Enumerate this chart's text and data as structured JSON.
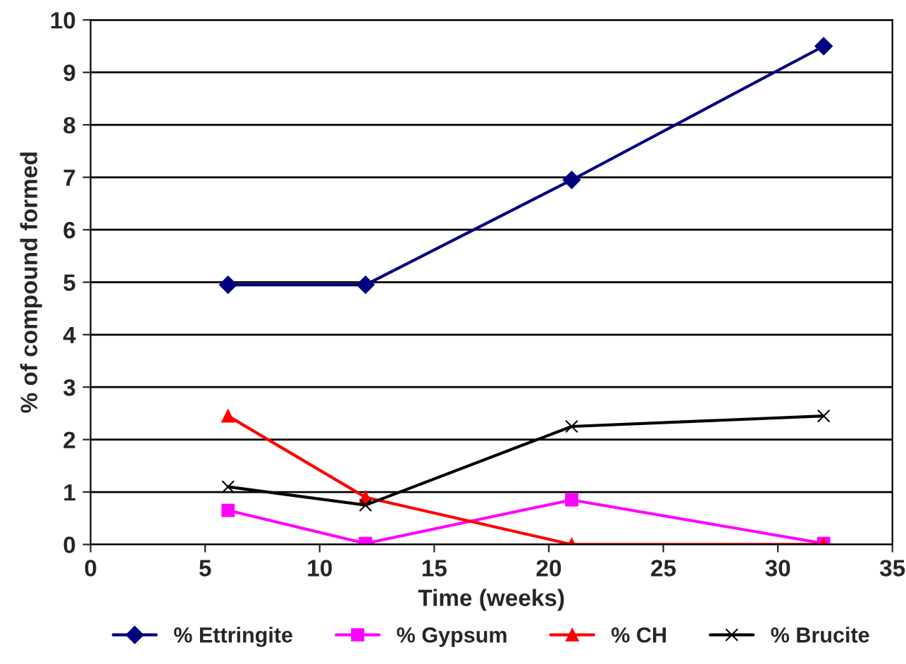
{
  "chart_data": {
    "type": "line",
    "xlabel": "Time (weeks)",
    "ylabel": "% of compound formed",
    "x": [
      6,
      12,
      21,
      32
    ],
    "series": [
      {
        "name": "% Ettringite",
        "color": "#000080",
        "marker": "diamond",
        "values": [
          4.95,
          4.95,
          6.95,
          9.5
        ]
      },
      {
        "name": "% Gypsum",
        "color": "#ff00ff",
        "marker": "square",
        "values": [
          0.65,
          0.02,
          0.85,
          0.02
        ]
      },
      {
        "name": "% CH",
        "color": "#ff0000",
        "marker": "triangle",
        "values": [
          2.45,
          0.9,
          0,
          0
        ]
      },
      {
        "name": "% Brucite",
        "color": "#000000",
        "marker": "cross",
        "values": [
          1.1,
          0.75,
          2.25,
          2.45
        ]
      }
    ],
    "xlim": [
      0,
      35
    ],
    "xticks": [
      0,
      5,
      10,
      15,
      20,
      25,
      30,
      35
    ],
    "ylim": [
      0,
      10
    ],
    "yticks": [
      0,
      1,
      2,
      3,
      4,
      5,
      6,
      7,
      8,
      9,
      10
    ],
    "grid": "y",
    "legend": "bottom",
    "line_style": "solid"
  }
}
